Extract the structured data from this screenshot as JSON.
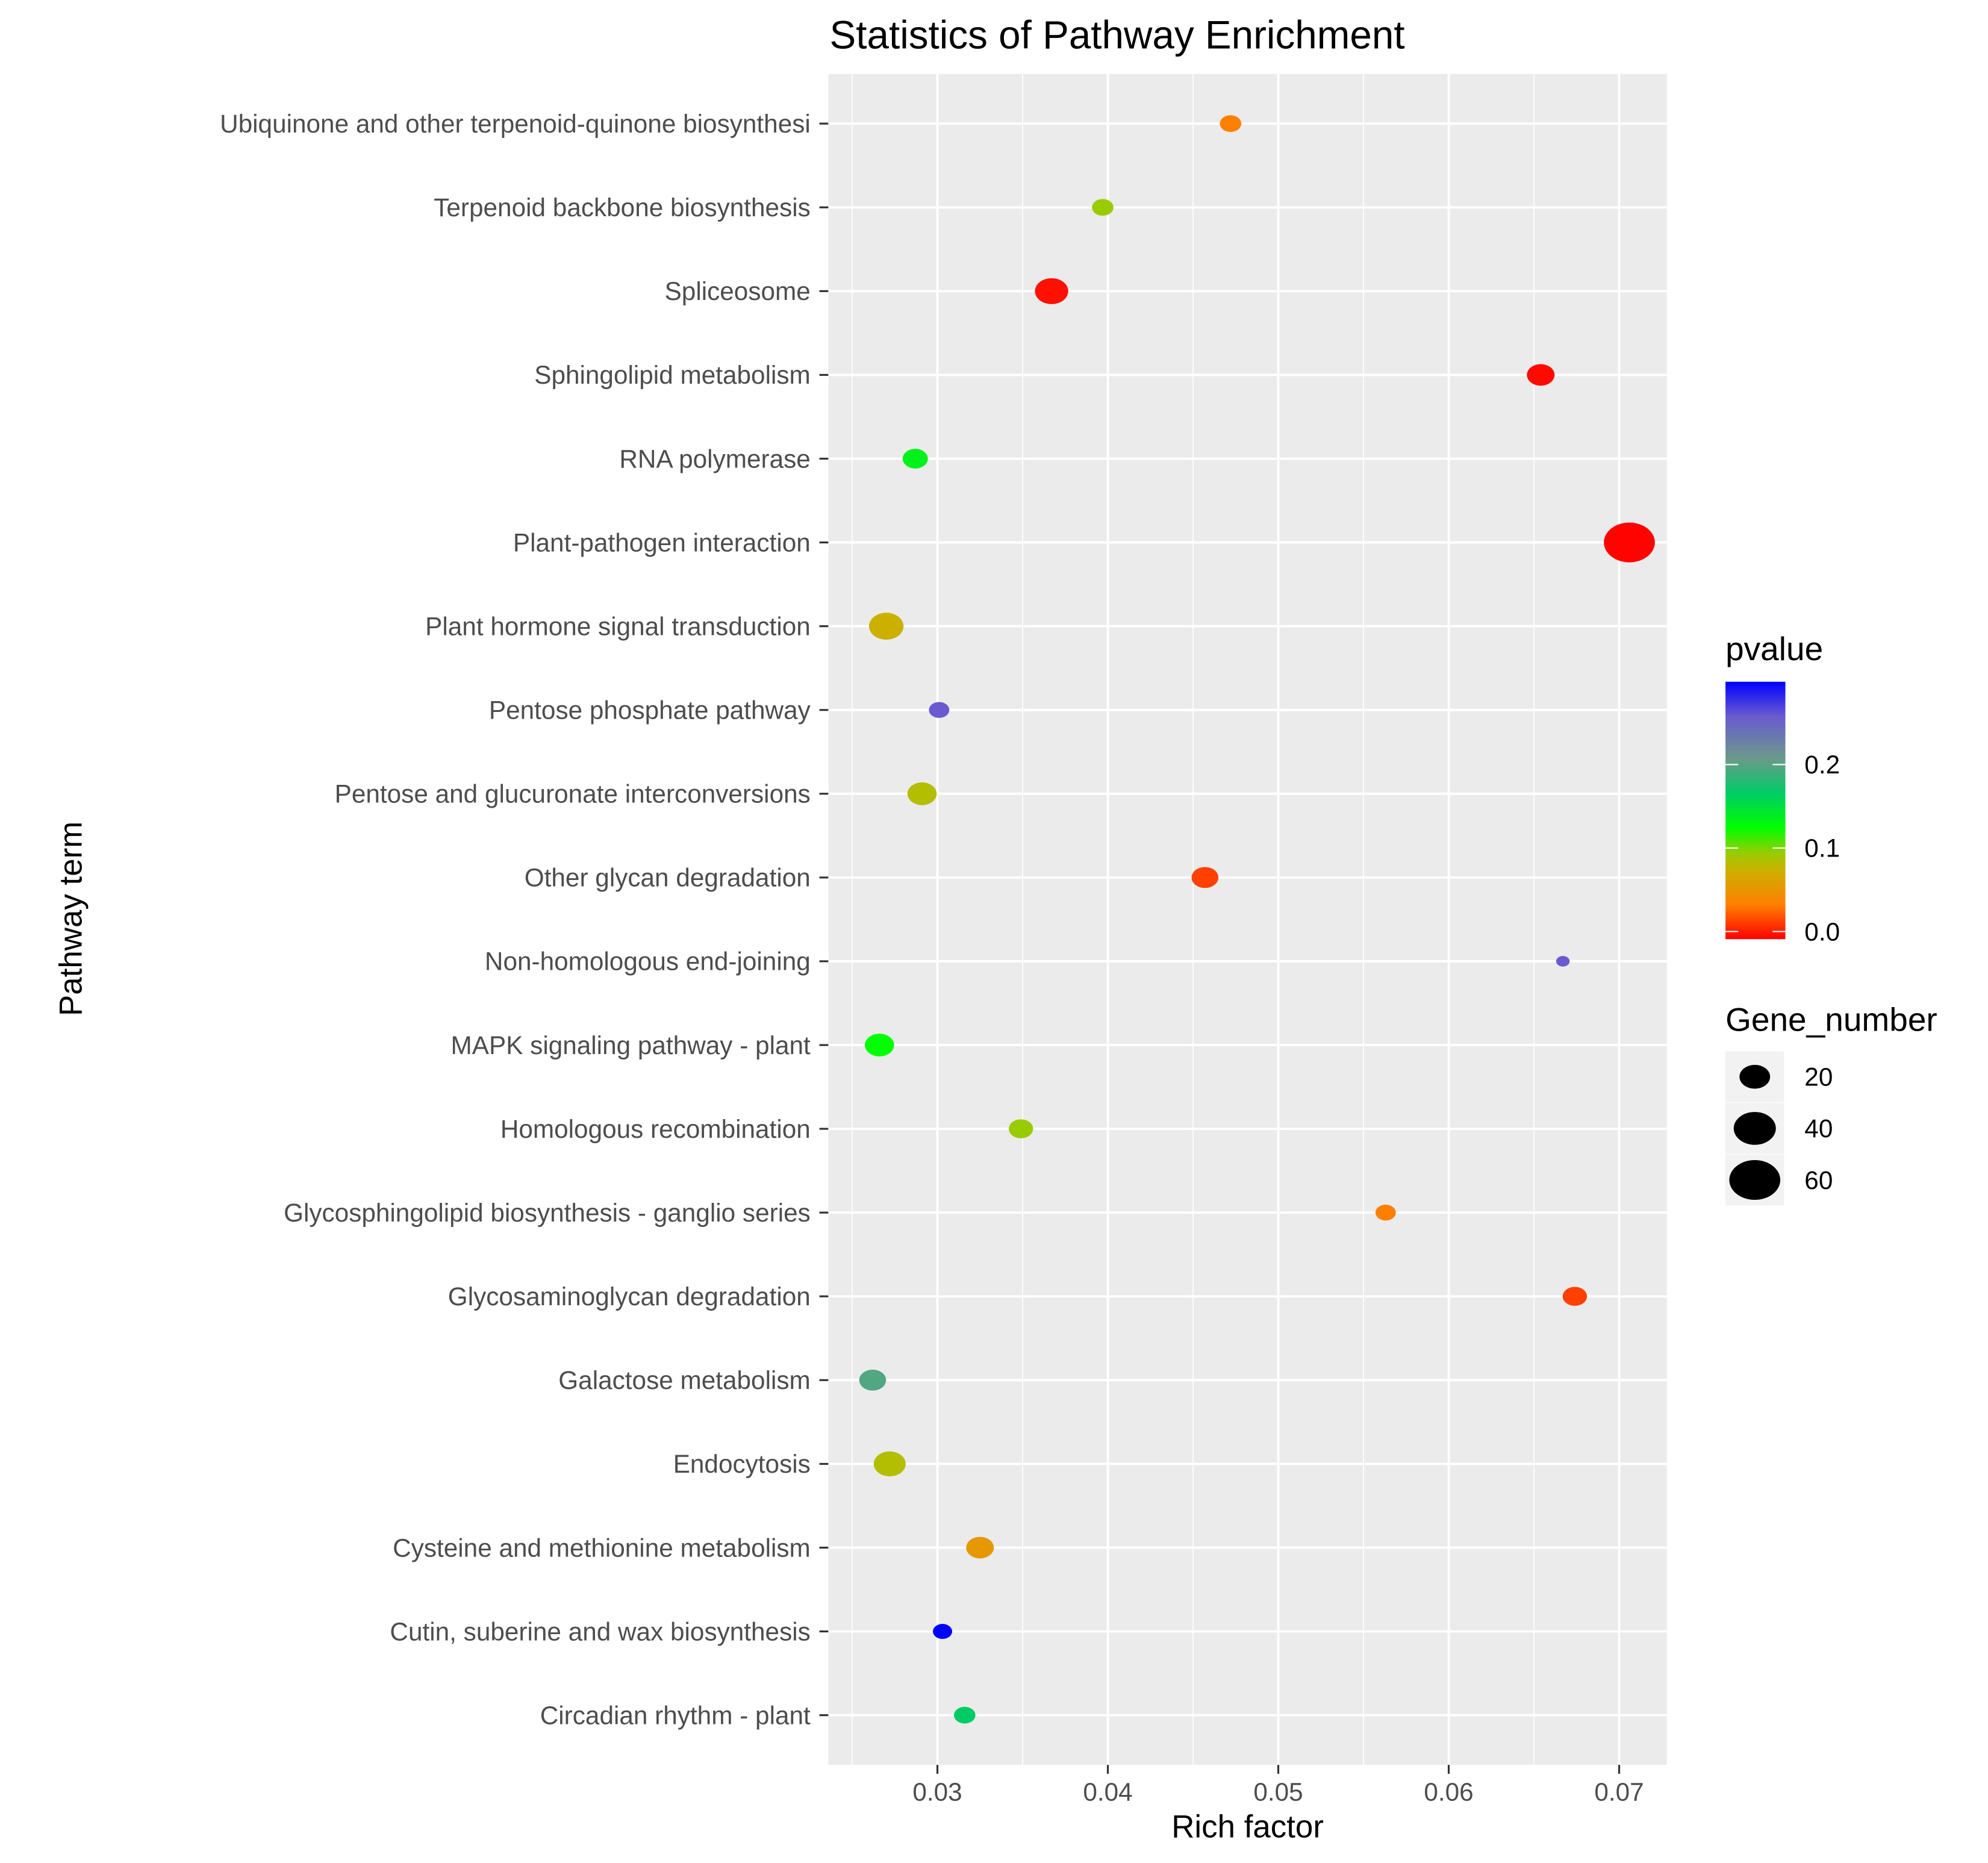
{
  "chart_data": {
    "type": "scatter",
    "title": "Statistics of Pathway Enrichment",
    "xlabel": "Rich factor",
    "ylabel": "Pathway term",
    "xlim": [
      0.0236,
      0.0728
    ],
    "x_ticks": [
      0.03,
      0.04,
      0.05,
      0.06,
      0.07
    ],
    "x_tick_labels": [
      "0.03",
      "0.04",
      "0.05",
      "0.06",
      "0.07"
    ],
    "grid": true,
    "categories": [
      "Ubiquinone and other terpenoid-quinone biosynthesi",
      "Terpenoid backbone biosynthesis",
      "Spliceosome",
      "Sphingolipid metabolism",
      "RNA polymerase",
      "Plant-pathogen interaction",
      "Plant hormone signal transduction",
      "Pentose phosphate pathway",
      "Pentose and glucuronate interconversions",
      "Other glycan degradation",
      "Non-homologous end-joining",
      "MAPK signaling pathway - plant",
      "Homologous recombination",
      "Glycosphingolipid biosynthesis - ganglio series",
      "Glycosaminoglycan degradation",
      "Galactose metabolism",
      "Endocytosis",
      "Cysteine and methionine metabolism",
      "Cutin, suberine and wax biosynthesis",
      "Circadian rhythm - plant"
    ],
    "rich_factor": [
      0.0472,
      0.0397,
      0.0367,
      0.0654,
      0.0287,
      0.0706,
      0.027,
      0.0301,
      0.0291,
      0.0457,
      0.0667,
      0.0266,
      0.0349,
      0.0563,
      0.0674,
      0.0262,
      0.0272,
      0.0325,
      0.0303,
      0.0316
    ],
    "pvalue": [
      0.04,
      0.1,
      0.005,
      0.003,
      0.14,
      0.001,
      0.08,
      0.26,
      0.09,
      0.02,
      0.26,
      0.13,
      0.1,
      0.04,
      0.02,
      0.2,
      0.09,
      0.06,
      0.3,
      0.17
    ],
    "gene_number": [
      9,
      9,
      24,
      16,
      13,
      60,
      26,
      8,
      18,
      15,
      3,
      18,
      12,
      8,
      12,
      15,
      22,
      16,
      7,
      9
    ],
    "color_legend": {
      "title": "pvalue",
      "range": [
        0,
        0.3
      ],
      "ticks": [
        0.0,
        0.1,
        0.2
      ],
      "tick_labels": [
        "0.0",
        "0.1",
        "0.2"
      ],
      "colorscale": [
        [
          0.0,
          "#ff0000"
        ],
        [
          0.04,
          "#ff7f00"
        ],
        [
          0.08,
          "#ccb000"
        ],
        [
          0.1,
          "#99cc00"
        ],
        [
          0.13,
          "#00ff00"
        ],
        [
          0.17,
          "#00cc66"
        ],
        [
          0.21,
          "#6a9a8a"
        ],
        [
          0.26,
          "#6a5ad0"
        ],
        [
          0.3,
          "#0000ff"
        ]
      ]
    },
    "size_legend": {
      "title": "Gene_number",
      "values": [
        20,
        40,
        60
      ],
      "labels": [
        "20",
        "40",
        "60"
      ]
    },
    "panel_background": "#ebebeb",
    "grid_color": "#ffffff"
  }
}
